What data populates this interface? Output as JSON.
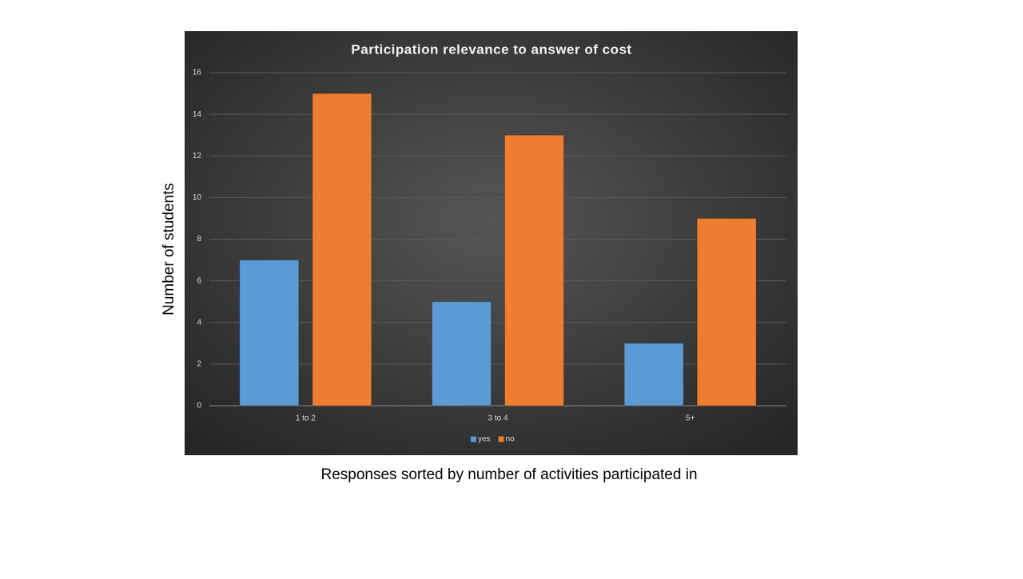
{
  "chart_data": {
    "type": "bar",
    "title": "Participation  relevance to answer of cost",
    "y_label": "Number of students",
    "x_label": "Responses sorted by number of activities participated in",
    "categories": [
      "1 to 2",
      "3 to 4",
      "5+"
    ],
    "series": [
      {
        "name": "yes",
        "color": "#5b9bd5",
        "values": [
          7,
          5,
          3
        ]
      },
      {
        "name": "no",
        "color": "#ed7d31",
        "values": [
          15,
          13,
          9
        ]
      }
    ],
    "ylim": [
      0,
      16
    ],
    "yticks": [
      0,
      2,
      4,
      6,
      8,
      10,
      12,
      14,
      16
    ],
    "grid": true,
    "legend": "bottom"
  }
}
